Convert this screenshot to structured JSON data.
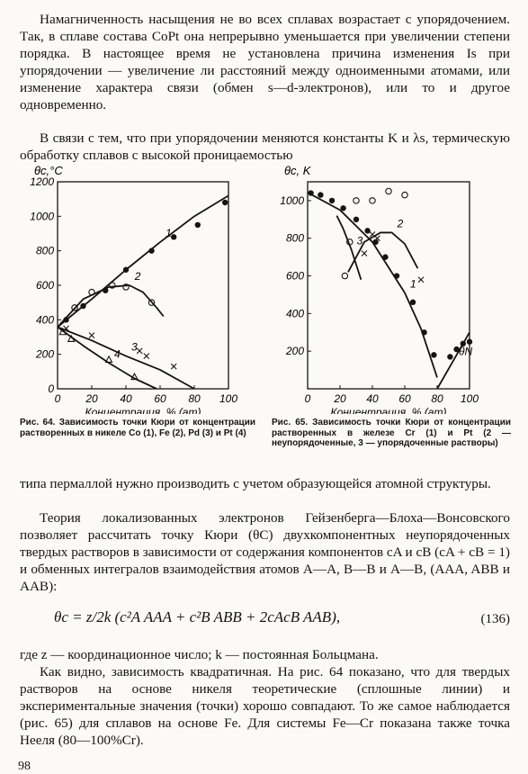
{
  "text": {
    "p1": "Намагниченность насыщения не во всех сплавах возрастает с упорядочением. Так, в сплаве состава CoPt она непрерывно уменьшается при увеличении степени порядка. В настоящее время не установлена причина изменения Is при упорядочении — увеличение ли расстояний между одноименными атомами, или изменение характера связи (обмен s—d-электронов), или то и другое одновременно.",
    "p2": "В связи с тем, что при упорядочении меняются константы K и λs, термическую обработку сплавов с высокой проницаемостью",
    "p3": "типа пермаллой нужно производить с учетом образующейся атомной структуры.",
    "p4": "Теория локализованных электронов Гейзенберга—Блоха—Вонсовского позволяет рассчитать точку Кюри (θC) двухкомпонентных неупорядоченных твердых растворов в зависимости от содержания компонентов cA и cB (cA + cB = 1) и обменных интегралов взаимодействия атомов A—A, B—B и A—B, (AAA, ABB и AAB):",
    "equation": "θc = z/2k (c²A AAA + c²B ABB + 2cAcB AAB),",
    "equation_number": "(136)",
    "p5": "где z — координационное число; k — постоянная Больцмана.",
    "p6": "Как видно, зависимость квадратичная. На рис. 64 показано, что для твердых растворов на основе никеля теоретические (сплошные линии) и экспериментальные значения (точки) хорошо совпадают. То же самое наблюдается (рис. 65) для сплавов на основе Fe. Для системы Fe—Cr показана также точка Нееля (80—100%Cr).",
    "page_number": "98"
  },
  "chart_data": [
    {
      "type": "line",
      "figure": "Рис. 64",
      "caption": "Рис. 64. Зависимость точки Кюри от концентрации растворенных в никеле Co (1), Fe (2), Pd (3) и Pt (4)",
      "ylabel": "θc,°C",
      "xlabel": "Концентрация, % (ат)",
      "xlim": [
        0,
        100
      ],
      "ylim": [
        0,
        1200
      ],
      "x_ticks": [
        "0",
        "20",
        "40",
        "60",
        "80",
        "100"
      ],
      "y_ticks": [
        "0",
        "200",
        "400",
        "600",
        "800",
        "1000",
        "1200"
      ],
      "series": [
        {
          "name": "1",
          "style": "solid",
          "x": [
            0,
            20,
            40,
            60,
            80,
            100
          ],
          "y": [
            358,
            520,
            690,
            850,
            1000,
            1120
          ]
        },
        {
          "name": "2",
          "style": "solid",
          "x": [
            0,
            15,
            30,
            42,
            50,
            58,
            62
          ],
          "y": [
            358,
            520,
            590,
            600,
            560,
            470,
            420
          ]
        },
        {
          "name": "3",
          "style": "solid",
          "x": [
            0,
            20,
            40,
            60,
            80
          ],
          "y": [
            358,
            280,
            190,
            110,
            0
          ]
        },
        {
          "name": "4",
          "style": "solid",
          "x": [
            0,
            15,
            30,
            45,
            58
          ],
          "y": [
            358,
            250,
            150,
            60,
            0
          ]
        }
      ],
      "points": [
        {
          "series": "1",
          "marker": "dot",
          "x": [
            5,
            15,
            28,
            40,
            55,
            68,
            82,
            98
          ],
          "y": [
            400,
            480,
            570,
            690,
            800,
            880,
            950,
            1080
          ]
        },
        {
          "series": "2",
          "marker": "open",
          "x": [
            10,
            20,
            32,
            40,
            55
          ],
          "y": [
            470,
            560,
            600,
            590,
            500
          ]
        },
        {
          "series": "3",
          "marker": "cross",
          "x": [
            5,
            20,
            48,
            52,
            68
          ],
          "y": [
            350,
            310,
            220,
            190,
            130
          ]
        },
        {
          "series": "4",
          "marker": "triangle",
          "x": [
            3,
            8,
            30,
            45
          ],
          "y": [
            330,
            290,
            170,
            70
          ]
        }
      ],
      "curve_labels": [
        "1",
        "2",
        "3",
        "4"
      ]
    },
    {
      "type": "line",
      "figure": "Рис. 65",
      "caption": "Рис. 65. Зависимость точки Кюри от концентрации растворенных в железе Cr (1) и Pt (2 — неупорядоченные, 3 — упорядоченные растворы)",
      "ylabel": "θc, K",
      "xlabel": "Концентрация, % (ат)",
      "xlim": [
        0,
        100
      ],
      "ylim": [
        0,
        1100
      ],
      "x_ticks": [
        "0",
        "20",
        "40",
        "60",
        "80",
        "100"
      ],
      "y_ticks": [
        "200",
        "400",
        "600",
        "800",
        "1000"
      ],
      "series": [
        {
          "name": "1",
          "style": "solid",
          "x": [
            0,
            20,
            40,
            60,
            70,
            80
          ],
          "y": [
            1043,
            950,
            780,
            510,
            320,
            60
          ]
        },
        {
          "name": "2",
          "style": "solid",
          "x": [
            25,
            35,
            45,
            52,
            60,
            68
          ],
          "y": [
            620,
            780,
            830,
            830,
            770,
            640
          ]
        },
        {
          "name": "3",
          "style": "solid",
          "x": [
            18,
            22,
            27,
            33
          ],
          "y": [
            920,
            850,
            740,
            580
          ]
        },
        {
          "name": "θN",
          "style": "solid",
          "x": [
            80,
            90,
            100
          ],
          "y": [
            0,
            150,
            300
          ]
        }
      ],
      "points": [
        {
          "series": "1",
          "marker": "dot",
          "x": [
            2,
            8,
            15,
            22,
            30,
            37,
            42,
            48,
            55,
            65,
            72,
            78
          ],
          "y": [
            1040,
            1030,
            1000,
            960,
            900,
            840,
            780,
            700,
            600,
            460,
            300,
            180
          ]
        },
        {
          "series": "3",
          "marker": "open",
          "x": [
            23,
            26,
            30,
            40,
            50,
            60
          ],
          "y": [
            600,
            780,
            1000,
            1000,
            1050,
            1030
          ]
        },
        {
          "series": "2",
          "marker": "cross",
          "x": [
            35,
            40,
            43,
            70
          ],
          "y": [
            720,
            820,
            800,
            580
          ]
        },
        {
          "series": "θN",
          "marker": "dot",
          "x": [
            88,
            92,
            96,
            100
          ],
          "y": [
            170,
            210,
            240,
            250
          ]
        }
      ],
      "curve_labels": [
        "1",
        "2",
        "3",
        "θN"
      ]
    }
  ]
}
